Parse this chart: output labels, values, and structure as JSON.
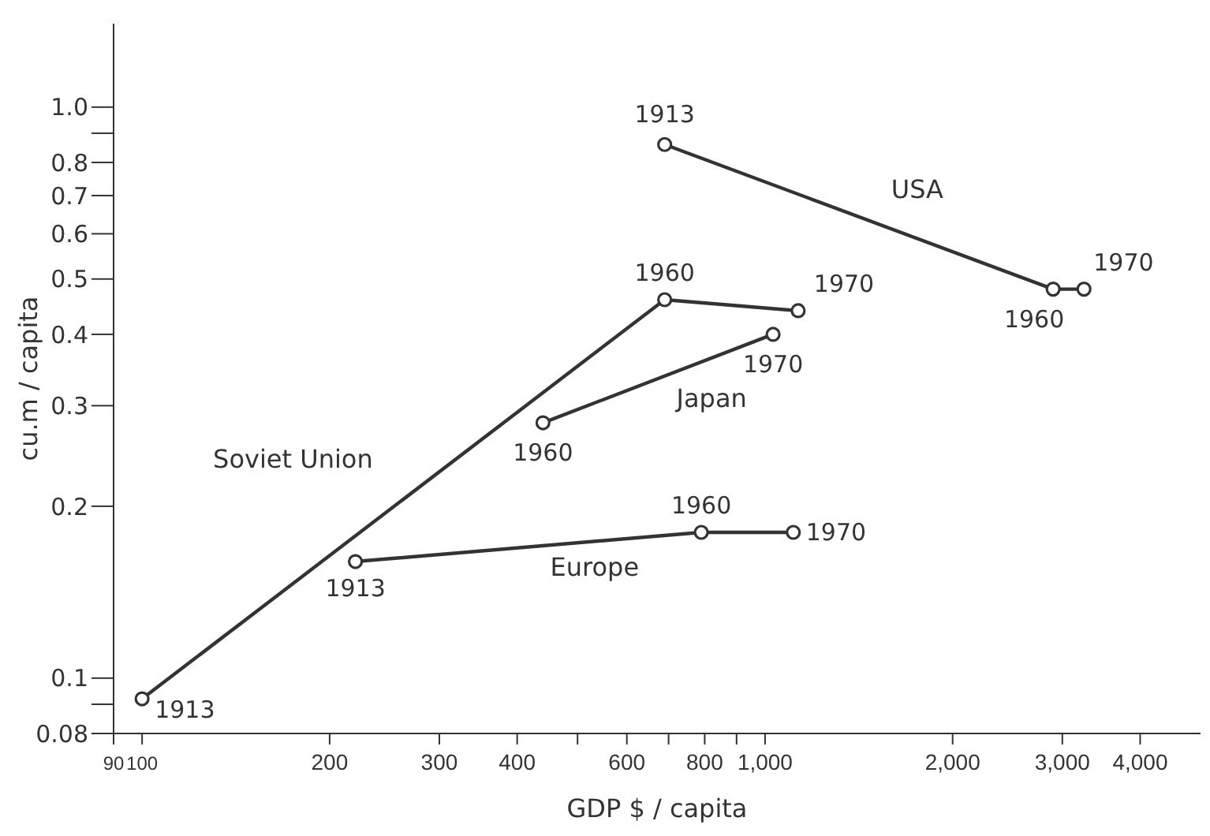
{
  "chart_data": {
    "type": "line",
    "xlabel": "GDP $ / capita",
    "ylabel": "cu.m / capita",
    "log": "xy",
    "marker": "circle",
    "xlim": [
      90,
      5000
    ],
    "ylim": [
      0.08,
      1.4
    ],
    "xticks": [
      90,
      100,
      200,
      300,
      400,
      {
        "value": 500,
        "label": null
      },
      600,
      {
        "value": 700,
        "label": null
      },
      800,
      {
        "value": 900,
        "label": null
      },
      {
        "value": 1000,
        "label": "1,000"
      },
      {
        "value": 2000,
        "label": "2,000"
      },
      {
        "value": 3000,
        "label": "3,000"
      },
      {
        "value": 4000,
        "label": "4,000"
      }
    ],
    "yticks": [
      0.08,
      {
        "value": 0.09,
        "label": null
      },
      0.1,
      0.2,
      0.3,
      0.4,
      0.5,
      0.6,
      0.7,
      0.8,
      {
        "value": 0.9,
        "label": null
      },
      {
        "value": 1,
        "label": "1.0"
      }
    ],
    "series": [
      {
        "name": "Soviet Union",
        "color": "#333333",
        "x": [
          100,
          690,
          1130
        ],
        "values": [
          0.092,
          0.46,
          0.44
        ]
      },
      {
        "name": "Europe",
        "color": "#333333",
        "x": [
          220,
          790,
          1110
        ],
        "values": [
          0.16,
          0.18,
          0.18
        ]
      },
      {
        "name": "Japan",
        "color": "#333333",
        "x": [
          440,
          1030
        ],
        "values": [
          0.28,
          0.4
        ]
      },
      {
        "name": "USA",
        "color": "#333333",
        "x": [
          690,
          2900,
          3250
        ],
        "values": [
          0.86,
          0.48,
          0.48
        ]
      }
    ],
    "annotations": [
      {
        "text": "1913",
        "x": 100,
        "y": 0.092
      },
      {
        "text": "1960",
        "x": 690,
        "y": 0.46
      },
      {
        "text": "1970",
        "x": 1130,
        "y": 0.44
      },
      {
        "text": "1913",
        "x": 220,
        "y": 0.16
      },
      {
        "text": "1960",
        "x": 790,
        "y": 0.18
      },
      {
        "text": "1970",
        "x": 1110,
        "y": 0.18
      },
      {
        "text": "1960",
        "x": 440,
        "y": 0.28
      },
      {
        "text": "1970",
        "x": 1030,
        "y": 0.4
      },
      {
        "text": "1913",
        "x": 690,
        "y": 0.86
      },
      {
        "text": "1960",
        "x": 2900,
        "y": 0.48
      },
      {
        "text": "1970",
        "x": 3250,
        "y": 0.48
      }
    ]
  }
}
